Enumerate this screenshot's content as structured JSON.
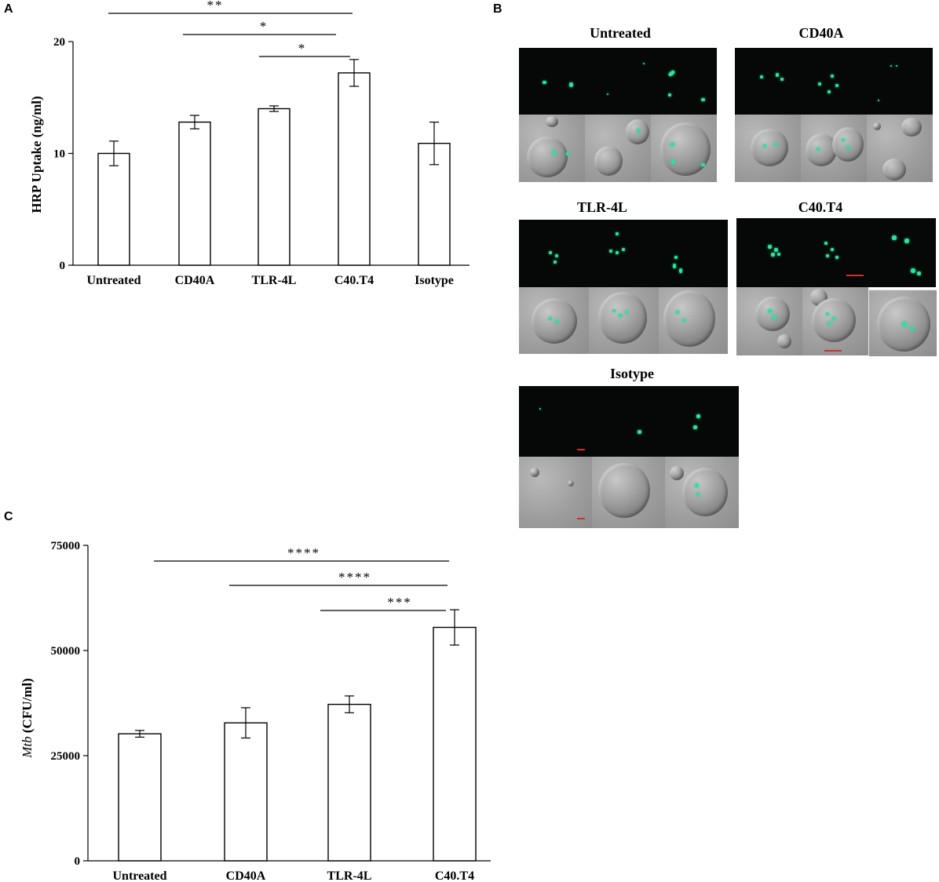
{
  "panels": {
    "a": "A",
    "b": "B",
    "c": "C"
  },
  "chart_data": [
    {
      "type": "bar",
      "panel": "A",
      "ylabel": "HRP Uptake (ng/ml)",
      "xlabel": "",
      "categories": [
        "Untreated",
        "CD40A",
        "TLR-4L",
        "C40.T4",
        "Isotype"
      ],
      "values": [
        10.0,
        12.8,
        14.0,
        17.2,
        10.9
      ],
      "errors": [
        1.1,
        0.6,
        0.25,
        1.2,
        1.9
      ],
      "ylim": [
        0,
        20
      ],
      "yticks": [
        0,
        10,
        20
      ],
      "significance": [
        {
          "from": "Untreated",
          "to": "C40.T4",
          "label": "**"
        },
        {
          "from": "CD40A",
          "to": "C40.T4",
          "label": "*"
        },
        {
          "from": "TLR-4L",
          "to": "C40.T4",
          "label": "*"
        }
      ]
    },
    {
      "type": "bar",
      "panel": "C",
      "ylabel": "Mtb (CFU/ml)",
      "ylabel_italic_part": "Mtb",
      "ylabel_rest": " (CFU/ml)",
      "xlabel": "",
      "categories": [
        "Untreated",
        "CD40A",
        "TLR-4L",
        "C40.T4"
      ],
      "values": [
        30200,
        32800,
        37200,
        55500
      ],
      "errors": [
        800,
        3600,
        2000,
        4200
      ],
      "ylim": [
        0,
        75000
      ],
      "yticks": [
        0,
        25000,
        50000,
        75000
      ],
      "significance": [
        {
          "from": "Untreated",
          "to": "C40.T4",
          "label": "****"
        },
        {
          "from": "CD40A",
          "to": "C40.T4",
          "label": "****"
        },
        {
          "from": "TLR-4L",
          "to": "C40.T4",
          "label": "***"
        }
      ]
    }
  ],
  "micrographs": [
    {
      "label": "Untreated"
    },
    {
      "label": "CD40A"
    },
    {
      "label": "TLR-4L"
    },
    {
      "label": "C40.T4"
    },
    {
      "label": "Isotype"
    }
  ]
}
